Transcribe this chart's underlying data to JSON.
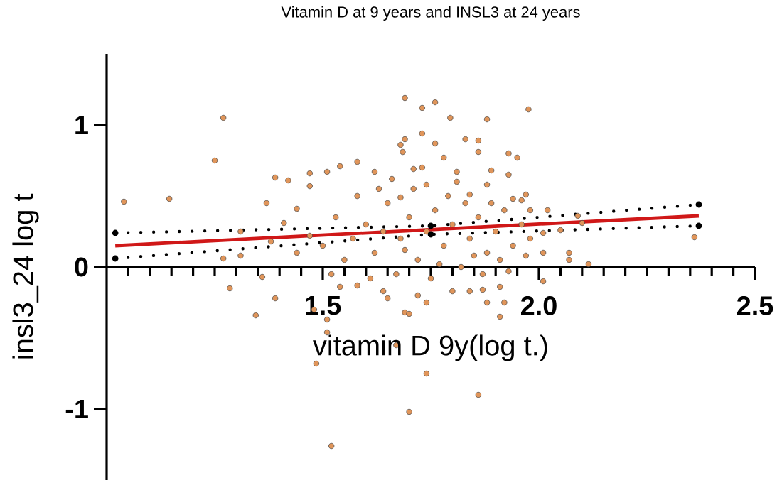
{
  "chart_data": {
    "type": "scatter",
    "title": "Vitamin D at 9 years and INSL3 at 24 years",
    "xlabel": "vitamin D 9y(log t.)",
    "ylabel": "insl3_24 log t",
    "xlim": [
      1.0,
      2.5
    ],
    "ylim": [
      -1.5,
      1.5
    ],
    "xticks": [
      {
        "value": 1.05,
        "label": null
      },
      {
        "value": 1.1,
        "label": null
      },
      {
        "value": 1.15,
        "label": null
      },
      {
        "value": 1.2,
        "label": null
      },
      {
        "value": 1.25,
        "label": null
      },
      {
        "value": 1.3,
        "label": null
      },
      {
        "value": 1.35,
        "label": null
      },
      {
        "value": 1.4,
        "label": null
      },
      {
        "value": 1.45,
        "label": null
      },
      1.5,
      {
        "value": 1.55,
        "label": null
      },
      {
        "value": 1.6,
        "label": null
      },
      {
        "value": 1.65,
        "label": null
      },
      {
        "value": 1.7,
        "label": null
      },
      {
        "value": 1.75,
        "label": null
      },
      {
        "value": 1.8,
        "label": null
      },
      {
        "value": 1.85,
        "label": null
      },
      {
        "value": 1.9,
        "label": null
      },
      {
        "value": 1.95,
        "label": null
      },
      {
        "value": 2,
        "label": "2.0"
      },
      {
        "value": 2.05,
        "label": null
      },
      {
        "value": 2.1,
        "label": null
      },
      {
        "value": 2.15,
        "label": null
      },
      {
        "value": 2.2,
        "label": null
      },
      {
        "value": 2.25,
        "label": null
      },
      {
        "value": 2.3,
        "label": null
      },
      {
        "value": 2.35,
        "label": null
      },
      {
        "value": 2.4,
        "label": null
      },
      {
        "value": 2.45,
        "label": null
      },
      2.5
    ],
    "yticks": [
      -1,
      0,
      1
    ],
    "series": [
      {
        "color": "#e0955a",
        "marker": "circle",
        "x": [
          1.04,
          1.145,
          1.25,
          1.27,
          1.27,
          1.31,
          1.31,
          1.37,
          1.39,
          1.42,
          1.47,
          1.47,
          1.51,
          1.54,
          1.58,
          1.62,
          1.69,
          1.68,
          1.685,
          1.41,
          1.44,
          1.38,
          1.36,
          1.285,
          1.345,
          1.39,
          1.48,
          1.51,
          1.51,
          1.485,
          1.52,
          1.7,
          1.67,
          1.69,
          1.54,
          1.58,
          1.64,
          1.65,
          1.76,
          1.73,
          1.795,
          1.88,
          1.976,
          1.73,
          1.69,
          1.76,
          1.83,
          1.86,
          1.86,
          1.93,
          1.95,
          1.78,
          1.71,
          1.81,
          1.89,
          1.93,
          1.97,
          1.96,
          2.02,
          1.98,
          2.09,
          2.1,
          2.05,
          2.01,
          2.01,
          2.07,
          2.07,
          2.115,
          2.36,
          1.68,
          1.74,
          1.84,
          1.88,
          1.94,
          1.72,
          1.74,
          1.7,
          1.8,
          1.84,
          1.87,
          1.88,
          1.91,
          1.92,
          1.91,
          2.01,
          1.74,
          1.86,
          1.6,
          1.62,
          1.65,
          1.68,
          1.7,
          1.72,
          1.74,
          1.76,
          1.78,
          1.8,
          1.82,
          1.84,
          1.86,
          1.88,
          1.9,
          1.92,
          1.94,
          1.96,
          1.98,
          1.57,
          1.55,
          1.58,
          1.63,
          1.67,
          1.71,
          1.75,
          1.79,
          1.83,
          1.87,
          1.91,
          1.66,
          1.73,
          1.81,
          1.53,
          1.5,
          1.47,
          1.44,
          1.52,
          1.69,
          1.77,
          1.85,
          1.93,
          1.61,
          1.64,
          1.89,
          1.97
        ],
        "values": [
          0.46,
          0.48,
          0.75,
          1.05,
          0.06,
          0.25,
          0.08,
          0.45,
          0.63,
          0.61,
          0.66,
          0.57,
          0.67,
          0.71,
          0.74,
          0.67,
          1.19,
          0.86,
          0.81,
          0.31,
          0.41,
          0.18,
          -0.07,
          -0.15,
          -0.34,
          -0.22,
          -0.3,
          -0.37,
          -0.46,
          -0.68,
          -1.26,
          -1.02,
          -0.55,
          -0.32,
          -0.14,
          -0.13,
          -0.17,
          -0.22,
          1.16,
          1.12,
          1.05,
          1.04,
          1.11,
          0.94,
          0.9,
          0.87,
          0.9,
          0.89,
          0.81,
          0.8,
          0.77,
          0.77,
          0.69,
          0.67,
          0.68,
          0.65,
          0.51,
          0.47,
          0.4,
          0.4,
          0.36,
          0.31,
          0.26,
          0.24,
          0.1,
          0.1,
          0.05,
          0.02,
          0.21,
          0.49,
          0.58,
          0.51,
          0.58,
          0.48,
          -0.2,
          -0.25,
          -0.33,
          -0.17,
          -0.17,
          -0.16,
          -0.25,
          -0.14,
          -0.25,
          -0.35,
          -0.1,
          -0.75,
          -0.9,
          0.3,
          0.1,
          0.45,
          0.2,
          0.35,
          0.05,
          0.25,
          0.4,
          0.15,
          0.3,
          0.0,
          0.2,
          0.35,
          0.1,
          0.25,
          0.4,
          0.15,
          0.3,
          0.2,
          0.2,
          0.05,
          0.5,
          0.55,
          -0.05,
          0.55,
          -0.08,
          0.5,
          0.45,
          -0.05,
          0.05,
          0.62,
          0.7,
          0.6,
          0.35,
          0.15,
          0.22,
          0.1,
          -0.05,
          0.12,
          0.02,
          0.08,
          -0.03,
          -0.08,
          0.25,
          0.45,
          0.08
        ]
      },
      {
        "type": "line",
        "color": "#d01818",
        "marker": "none",
        "line_style": "solid",
        "x": [
          1.02,
          2.37
        ],
        "values": [
          0.15,
          0.36
        ]
      },
      {
        "type": "line",
        "color": "#000000",
        "marker": "none",
        "line_style": "dotted",
        "x": [
          1.02,
          1.75,
          2.37
        ],
        "values": [
          0.24,
          0.29,
          0.44
        ]
      },
      {
        "type": "line",
        "color": "#000000",
        "marker": "none",
        "line_style": "dotted",
        "x": [
          1.02,
          1.75,
          2.37
        ],
        "values": [
          0.06,
          0.23,
          0.29
        ]
      }
    ]
  }
}
